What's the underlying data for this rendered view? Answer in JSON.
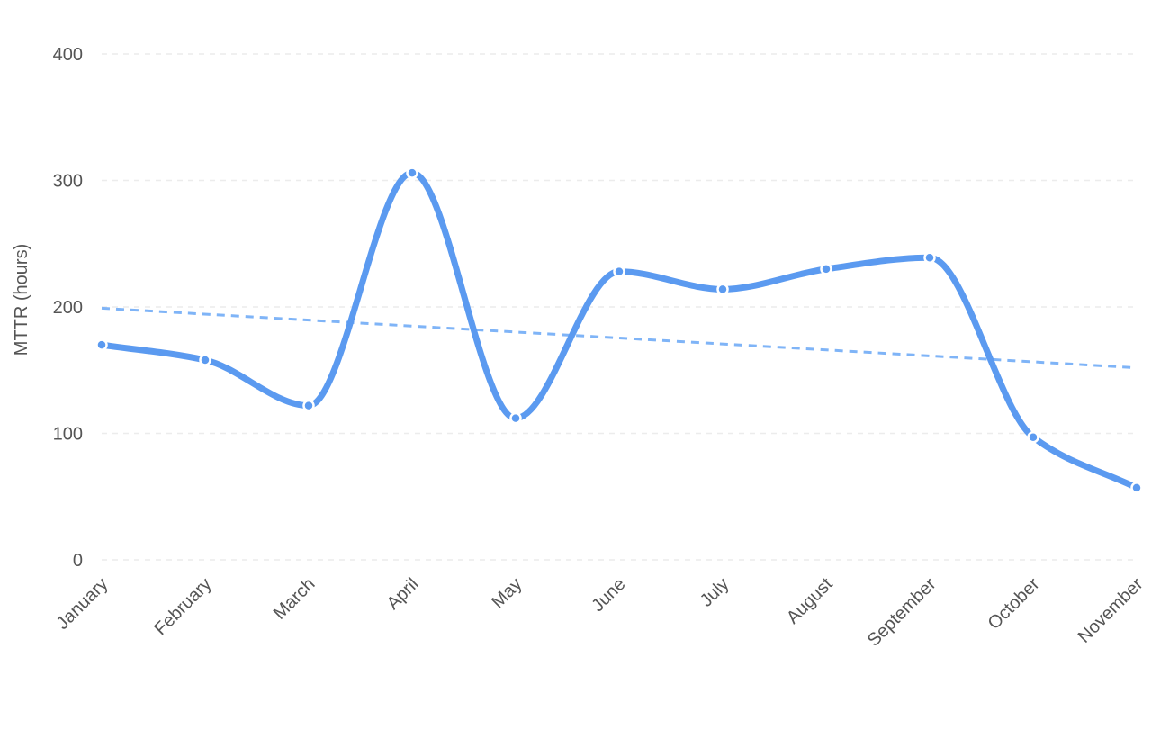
{
  "chart_data": {
    "type": "line",
    "title": "",
    "xlabel": "",
    "ylabel": "MTTR (hours)",
    "ylim": [
      0,
      400
    ],
    "y_ticks": [
      0,
      100,
      200,
      300,
      400
    ],
    "grid": true,
    "categories": [
      "January",
      "February",
      "March",
      "April",
      "May",
      "June",
      "July",
      "August",
      "September",
      "October",
      "November"
    ],
    "series": [
      {
        "values": [
          170,
          158,
          122,
          306,
          112,
          228,
          214,
          230,
          239,
          97,
          57
        ],
        "color": "#5b9af0",
        "smooth": true,
        "markers": true
      }
    ],
    "trendline": {
      "start": 199,
      "end": 152,
      "color": "#7fb4f7",
      "style": "dashed"
    }
  }
}
